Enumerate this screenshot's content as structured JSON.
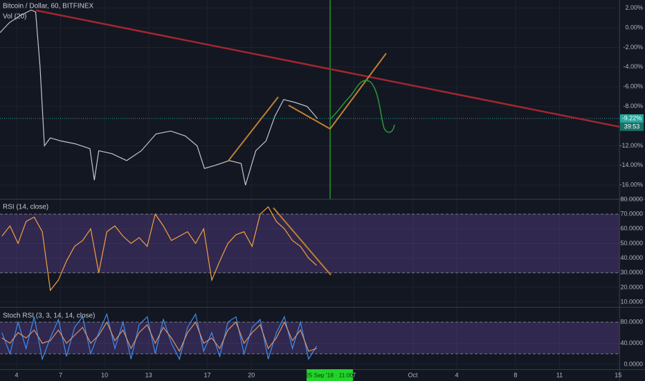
{
  "header": {
    "volume": "Vol (20)"
  },
  "crosshair_label": "25 Sep '18 · 11:00",
  "countdown": "39:53",
  "xlim": [
    2.87,
    45.08
  ],
  "xticks": [
    4,
    7,
    10,
    13,
    17,
    20,
    {
      "value": 27,
      "label": "7"
    },
    {
      "value": 31,
      "label": "Oct"
    },
    {
      "value": 34,
      "label": "4"
    },
    {
      "value": 38,
      "label": "8"
    },
    {
      "value": 41,
      "label": "11"
    },
    {
      "value": 45,
      "label": "15"
    }
  ],
  "chart_data": [
    {
      "type": "line",
      "title": "Bitcoin / Dollar, 60, BITFINEX",
      "color": "#c3c6cc",
      "x": [
        2.87,
        3.5,
        4.2,
        5.0,
        5.3,
        5.6,
        5.9,
        6.3,
        7.0,
        8.0,
        9.0,
        9.3,
        9.6,
        10.5,
        11.5,
        12.5,
        13.5,
        14.5,
        15.5,
        16.3,
        16.8,
        17.5,
        18.5,
        19.3,
        19.6,
        20.3,
        21.0,
        21.6,
        22.2,
        23.0,
        23.8,
        24.5
      ],
      "values": [
        -0.5,
        0.5,
        1.2,
        1.8,
        1.6,
        -4,
        -12,
        -11.2,
        -11.5,
        -11.8,
        -12.3,
        -15.5,
        -12.5,
        -12.8,
        -13.5,
        -12.5,
        -10.8,
        -10.5,
        -11,
        -12,
        -14.3,
        -14,
        -13.5,
        -13.8,
        -16,
        -12.5,
        -11.5,
        -9,
        -7.3,
        -7.6,
        -8,
        -9.22
      ],
      "last_value": {
        "value": -9.22,
        "label": "-9.22%"
      },
      "ylim": [
        -17.39,
        2.82
      ],
      "yticks": [
        {
          "value": 2,
          "label": "2.00%"
        },
        {
          "value": 0,
          "label": "0.00%"
        },
        {
          "value": -2,
          "label": "-2.00%"
        },
        {
          "value": -4,
          "label": "-4.00%"
        },
        {
          "value": -6,
          "label": "-6.00%"
        },
        {
          "value": -8,
          "label": "-8.00%"
        },
        {
          "value": -12,
          "label": "-12.00%"
        },
        {
          "value": -14,
          "label": "-14.00%"
        },
        {
          "value": -16,
          "label": "-16.00%"
        }
      ],
      "grid": true
    },
    {
      "type": "line",
      "title": "RSI (14, close)",
      "color": "#f5a040",
      "x": [
        3.0,
        3.55,
        4.1,
        4.65,
        5.2,
        5.75,
        6.3,
        6.85,
        7.4,
        7.95,
        8.5,
        9.05,
        9.6,
        10.15,
        10.7,
        11.25,
        11.8,
        12.35,
        12.9,
        13.45,
        14.0,
        14.55,
        15.1,
        15.65,
        16.2,
        16.75,
        17.3,
        17.85,
        18.4,
        18.95,
        19.5,
        20.05,
        20.6,
        21.15,
        21.7,
        22.25,
        22.8,
        23.35,
        23.9,
        24.45
      ],
      "values": [
        55,
        62,
        50,
        65,
        68,
        58,
        18,
        25,
        38,
        48,
        52,
        60,
        30,
        58,
        62,
        55,
        50,
        54,
        48,
        70,
        62,
        52,
        55,
        58,
        50,
        60,
        25,
        38,
        50,
        56,
        58,
        48,
        70,
        75,
        65,
        60,
        52,
        48,
        40,
        35
      ],
      "bands": [
        70,
        30
      ],
      "ylim": [
        6.7,
        80
      ],
      "yticks": [
        {
          "value": 80,
          "label": "80.0000"
        },
        {
          "value": 70,
          "label": "70.0000"
        },
        {
          "value": 60,
          "label": "60.0000"
        },
        {
          "value": 50,
          "label": "50.0000"
        },
        {
          "value": 40,
          "label": "40.0000"
        },
        {
          "value": 30,
          "label": "30.0000"
        },
        {
          "value": 20,
          "label": "20.0000"
        },
        {
          "value": 10,
          "label": "10.0000"
        }
      ],
      "grid": true
    },
    {
      "type": "line",
      "title": "Stoch RSI (3, 3, 14, 14, close)",
      "x": [
        3.0,
        3.55,
        4.1,
        4.65,
        5.2,
        5.75,
        6.3,
        6.85,
        7.4,
        7.95,
        8.5,
        9.05,
        9.6,
        10.15,
        10.7,
        11.25,
        11.8,
        12.35,
        12.9,
        13.45,
        14.0,
        14.55,
        15.1,
        15.65,
        16.2,
        16.75,
        17.3,
        17.85,
        18.4,
        18.95,
        19.5,
        20.05,
        20.6,
        21.15,
        21.7,
        22.25,
        22.8,
        23.35,
        23.9,
        24.45
      ],
      "series": [
        {
          "color": "#3d8ef0",
          "values": [
            60,
            20,
            80,
            30,
            90,
            10,
            50,
            85,
            15,
            70,
            90,
            20,
            60,
            95,
            30,
            80,
            10,
            75,
            90,
            20,
            85,
            40,
            10,
            70,
            95,
            25,
            60,
            15,
            80,
            90,
            20,
            70,
            85,
            10,
            60,
            90,
            30,
            80,
            10,
            35
          ]
        },
        {
          "color": "#d9956a",
          "values": [
            50,
            40,
            60,
            50,
            65,
            40,
            45,
            65,
            40,
            55,
            70,
            40,
            55,
            80,
            45,
            65,
            30,
            60,
            75,
            40,
            70,
            50,
            25,
            60,
            80,
            40,
            50,
            30,
            65,
            80,
            40,
            60,
            75,
            30,
            50,
            80,
            45,
            65,
            25,
            30
          ]
        }
      ],
      "bands": [
        80,
        20
      ],
      "ylim": [
        -9.2,
        107.5
      ],
      "yticks": [
        {
          "value": 80,
          "label": "80.0000"
        },
        {
          "value": 40,
          "label": "40.0000"
        },
        {
          "value": 0,
          "label": "0.0000"
        }
      ],
      "grid": true
    }
  ]
}
